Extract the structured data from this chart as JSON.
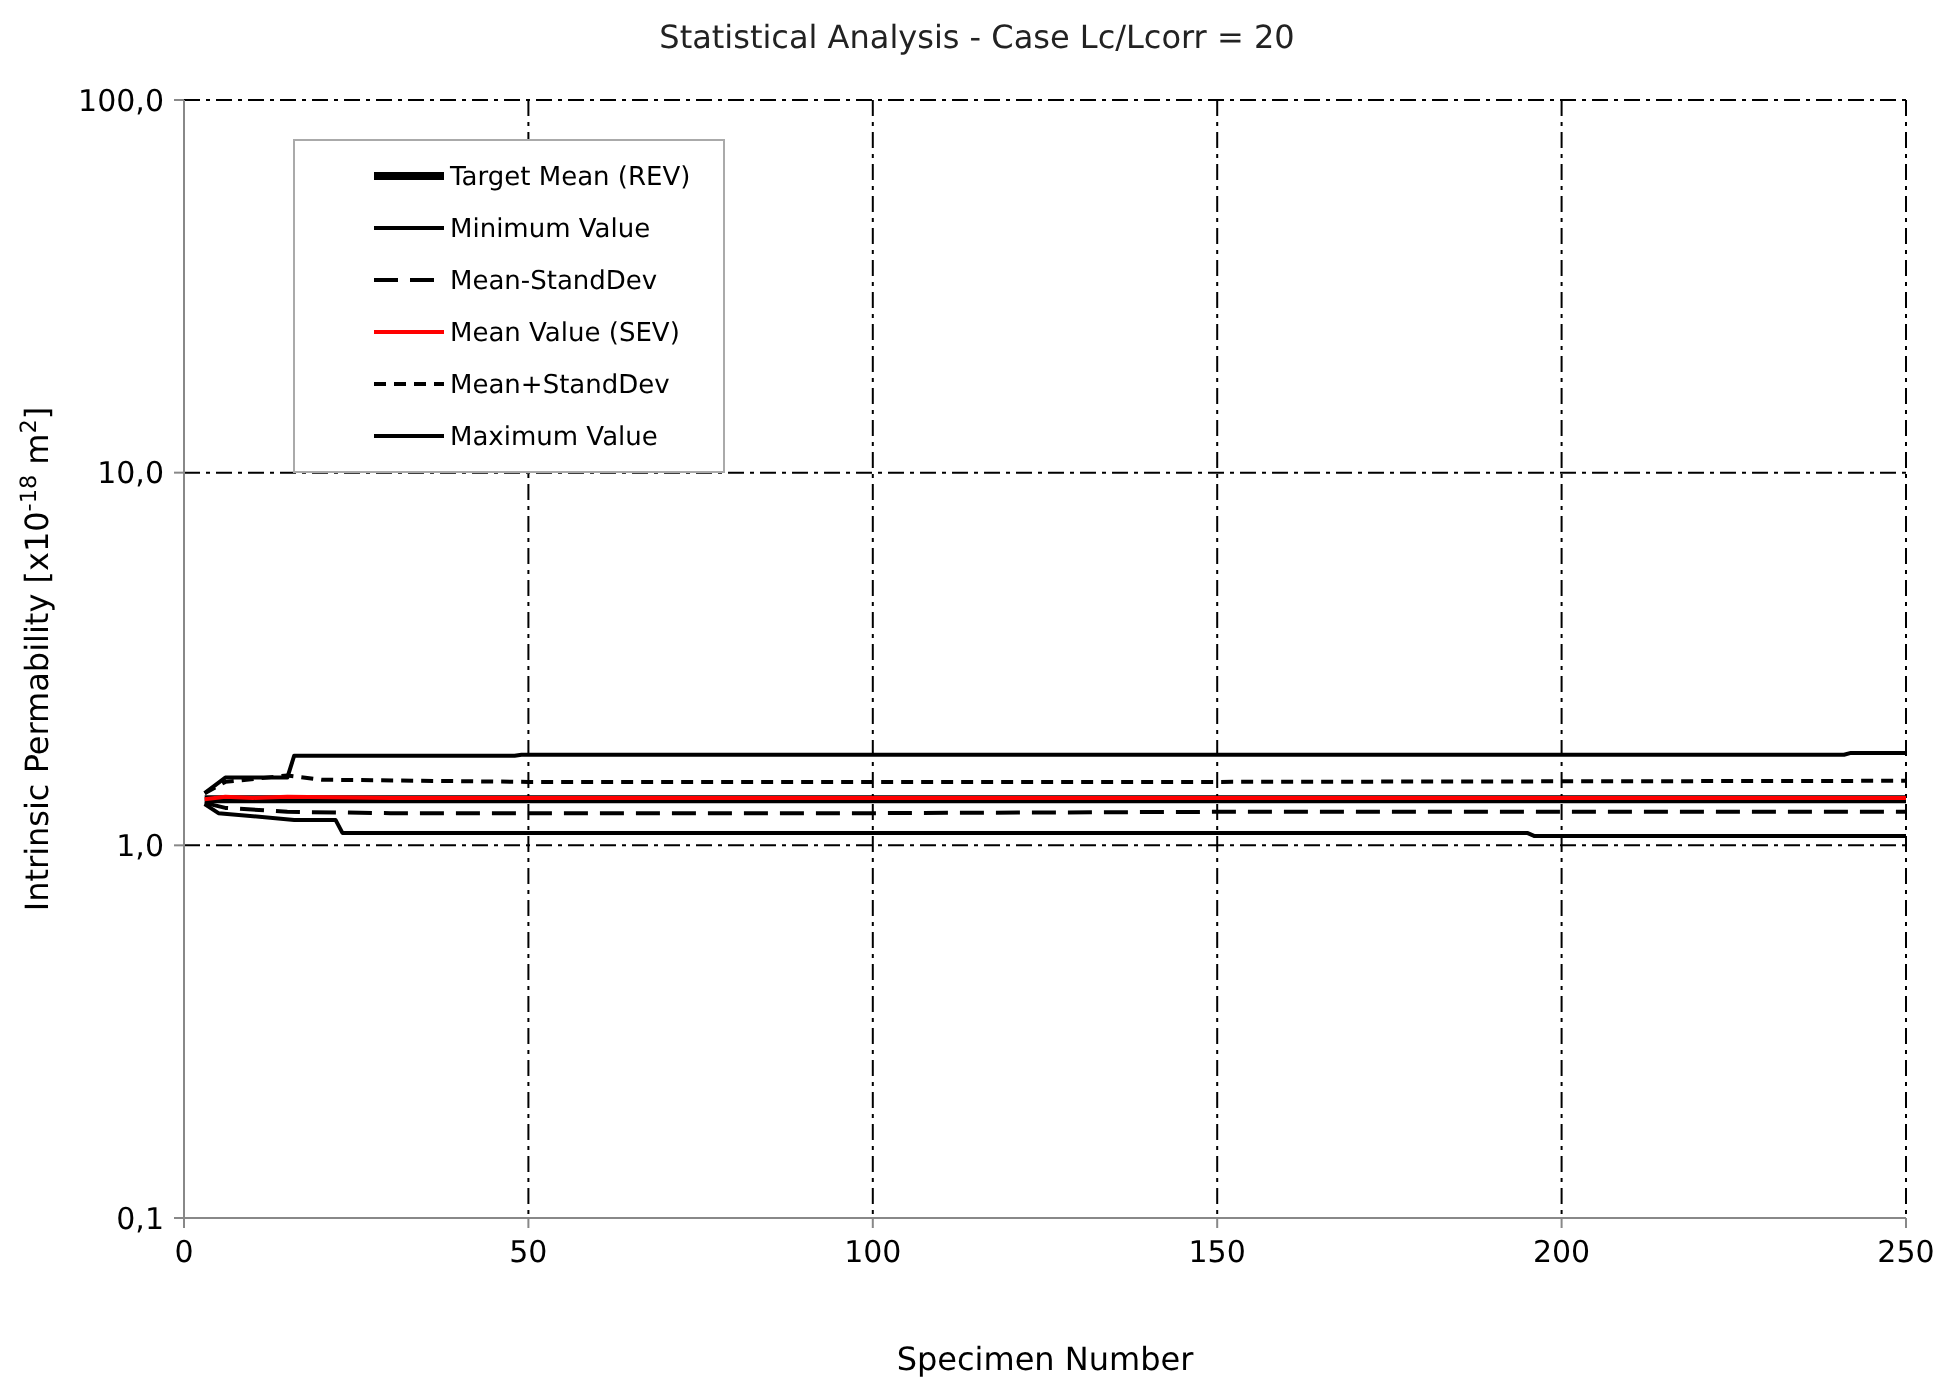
{
  "chart_data": {
    "type": "line",
    "title": "Statistical Analysis - Case Lc/Lcorr = 20",
    "xlabel": "Specimen Number",
    "ylabel": "Intrinsic Permability [x10$^{-18}$ m$^{2}$]",
    "log": "y",
    "grid": true,
    "legend": "top left",
    "marker": "none",
    "xlim": [
      0,
      250
    ],
    "xticks": [
      0,
      50,
      100,
      150,
      200,
      250
    ],
    "ylim": [
      0.1,
      100
    ],
    "yticks": [
      {
        "value": 0.1,
        "label": "0,1"
      },
      {
        "value": 1,
        "label": "1,0"
      },
      {
        "value": 10,
        "label": "10,0"
      },
      {
        "value": 100,
        "label": "100,0"
      }
    ],
    "series": [
      {
        "name": "Target Mean (REV)",
        "color": "#000000",
        "line_style": "solid",
        "x": [
          3,
          250
        ],
        "values": [
          1.33,
          1.33
        ]
      },
      {
        "name": "Minimum Value",
        "color": "#000000",
        "line_style": "solid",
        "x": [
          3,
          5,
          16,
          22,
          23,
          195,
          196,
          250
        ],
        "values": [
          1.29,
          1.22,
          1.17,
          1.17,
          1.08,
          1.08,
          1.06,
          1.06
        ]
      },
      {
        "name": "Mean-StandDev",
        "color": "#000000",
        "line_style": "dashed",
        "x": [
          3,
          6,
          15,
          30,
          100,
          150,
          200,
          250
        ],
        "values": [
          1.3,
          1.26,
          1.23,
          1.22,
          1.22,
          1.23,
          1.23,
          1.23
        ]
      },
      {
        "name": "Mean Value (SEV)",
        "color": "#ff0000",
        "line_style": "solid",
        "x": [
          3,
          6,
          10,
          15,
          30,
          100,
          150,
          250
        ],
        "values": [
          1.33,
          1.35,
          1.34,
          1.35,
          1.34,
          1.34,
          1.34,
          1.34
        ]
      },
      {
        "name": "Mean+StandDev",
        "color": "#000000",
        "line_style": "dotted",
        "x": [
          3,
          6,
          15,
          20,
          50,
          150,
          250
        ],
        "values": [
          1.38,
          1.48,
          1.54,
          1.5,
          1.48,
          1.48,
          1.49
        ]
      },
      {
        "name": "Maximum Value",
        "color": "#000000",
        "line_style": "solid",
        "x": [
          3,
          6,
          15,
          16,
          48,
          49,
          241,
          242,
          250
        ],
        "values": [
          1.38,
          1.52,
          1.52,
          1.74,
          1.74,
          1.75,
          1.75,
          1.77,
          1.77
        ]
      }
    ]
  }
}
